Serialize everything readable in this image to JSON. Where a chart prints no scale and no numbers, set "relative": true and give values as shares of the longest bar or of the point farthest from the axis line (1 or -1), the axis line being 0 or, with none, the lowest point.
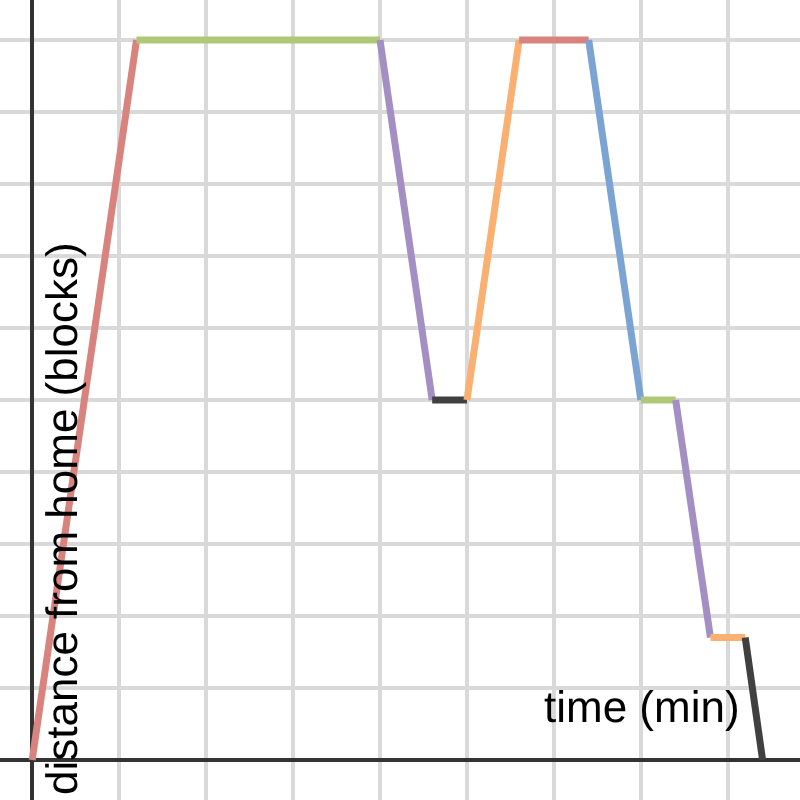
{
  "chart_data": {
    "type": "line",
    "relative": true,
    "xlabel": "time (min)",
    "ylabel": "distance from home (blocks)",
    "categories": [
      null,
      null,
      null,
      null,
      null,
      null,
      null,
      null,
      null,
      null,
      null,
      null,
      null,
      null,
      null,
      null,
      null,
      null,
      null,
      null,
      null,
      null,
      null,
      null,
      null,
      null,
      null,
      null,
      null,
      null,
      null,
      null,
      null,
      null,
      null,
      null,
      null,
      null,
      null,
      null,
      null,
      null,
      null
    ],
    "grid": true,
    "marker": "none",
    "line_style": "solid",
    "series": [
      {
        "color": "#d9837f",
        "values": [
          0,
          null,
          null,
          null,
          null,
          null,
          1,
          null,
          null,
          null,
          null,
          null,
          null,
          null,
          null,
          null,
          null,
          null,
          null,
          null,
          null,
          null,
          null,
          null,
          null,
          null,
          null,
          null,
          null,
          null,
          null,
          null,
          null,
          null,
          null,
          null,
          null,
          null,
          null,
          null,
          null,
          null,
          null
        ]
      },
      {
        "color": "#aec878",
        "values": [
          null,
          null,
          null,
          null,
          null,
          null,
          1,
          null,
          null,
          null,
          null,
          null,
          null,
          null,
          null,
          null,
          null,
          null,
          null,
          null,
          1,
          null,
          null,
          null,
          null,
          null,
          null,
          null,
          null,
          null,
          null,
          null,
          null,
          null,
          null,
          null,
          null,
          null,
          null,
          null,
          null,
          null,
          null
        ]
      },
      {
        "color": "#a38fc4",
        "values": [
          null,
          null,
          null,
          null,
          null,
          null,
          null,
          null,
          null,
          null,
          null,
          null,
          null,
          null,
          null,
          null,
          null,
          null,
          null,
          null,
          1,
          null,
          null,
          0.5,
          null,
          null,
          null,
          null,
          null,
          null,
          null,
          null,
          null,
          null,
          null,
          null,
          null,
          null,
          null,
          null,
          null,
          null,
          null
        ]
      },
      {
        "color": "#404040",
        "values": [
          null,
          null,
          null,
          null,
          null,
          null,
          null,
          null,
          null,
          null,
          null,
          null,
          null,
          null,
          null,
          null,
          null,
          null,
          null,
          null,
          null,
          null,
          null,
          0.5,
          null,
          0.5,
          null,
          null,
          null,
          null,
          null,
          null,
          null,
          null,
          null,
          null,
          null,
          null,
          null,
          null,
          null,
          null,
          null
        ]
      },
      {
        "color": "#f9b070",
        "values": [
          null,
          null,
          null,
          null,
          null,
          null,
          null,
          null,
          null,
          null,
          null,
          null,
          null,
          null,
          null,
          null,
          null,
          null,
          null,
          null,
          null,
          null,
          null,
          null,
          null,
          0.5,
          null,
          null,
          1,
          null,
          null,
          null,
          null,
          null,
          null,
          null,
          null,
          null,
          null,
          null,
          null,
          null,
          null
        ]
      },
      {
        "color": "#d9837f",
        "values": [
          null,
          null,
          null,
          null,
          null,
          null,
          null,
          null,
          null,
          null,
          null,
          null,
          null,
          null,
          null,
          null,
          null,
          null,
          null,
          null,
          null,
          null,
          null,
          null,
          null,
          null,
          null,
          null,
          1,
          null,
          null,
          null,
          1,
          null,
          null,
          null,
          null,
          null,
          null,
          null,
          null,
          null,
          null
        ]
      },
      {
        "color": "#7ba3d3",
        "values": [
          null,
          null,
          null,
          null,
          null,
          null,
          null,
          null,
          null,
          null,
          null,
          null,
          null,
          null,
          null,
          null,
          null,
          null,
          null,
          null,
          null,
          null,
          null,
          null,
          null,
          null,
          null,
          null,
          null,
          null,
          null,
          null,
          1,
          null,
          null,
          0.5,
          null,
          null,
          null,
          null,
          null,
          null,
          null
        ]
      },
      {
        "color": "#aec878",
        "values": [
          null,
          null,
          null,
          null,
          null,
          null,
          null,
          null,
          null,
          null,
          null,
          null,
          null,
          null,
          null,
          null,
          null,
          null,
          null,
          null,
          null,
          null,
          null,
          null,
          null,
          null,
          null,
          null,
          null,
          null,
          null,
          null,
          null,
          null,
          null,
          0.5,
          null,
          0.5,
          null,
          null,
          null,
          null,
          null
        ]
      },
      {
        "color": "#a38fc4",
        "values": [
          null,
          null,
          null,
          null,
          null,
          null,
          null,
          null,
          null,
          null,
          null,
          null,
          null,
          null,
          null,
          null,
          null,
          null,
          null,
          null,
          null,
          null,
          null,
          null,
          null,
          null,
          null,
          null,
          null,
          null,
          null,
          null,
          null,
          null,
          null,
          null,
          null,
          0.5,
          null,
          0.17,
          null,
          null,
          null
        ]
      },
      {
        "color": "#f9b070",
        "values": [
          null,
          null,
          null,
          null,
          null,
          null,
          null,
          null,
          null,
          null,
          null,
          null,
          null,
          null,
          null,
          null,
          null,
          null,
          null,
          null,
          null,
          null,
          null,
          null,
          null,
          null,
          null,
          null,
          null,
          null,
          null,
          null,
          null,
          null,
          null,
          null,
          null,
          null,
          null,
          0.17,
          null,
          0.17,
          null
        ]
      },
      {
        "color": "#404040",
        "values": [
          null,
          null,
          null,
          null,
          null,
          null,
          null,
          null,
          null,
          null,
          null,
          null,
          null,
          null,
          null,
          null,
          null,
          null,
          null,
          null,
          null,
          null,
          null,
          null,
          null,
          null,
          null,
          null,
          null,
          null,
          null,
          null,
          null,
          null,
          null,
          null,
          null,
          null,
          null,
          null,
          null,
          0.17,
          0
        ]
      }
    ]
  }
}
